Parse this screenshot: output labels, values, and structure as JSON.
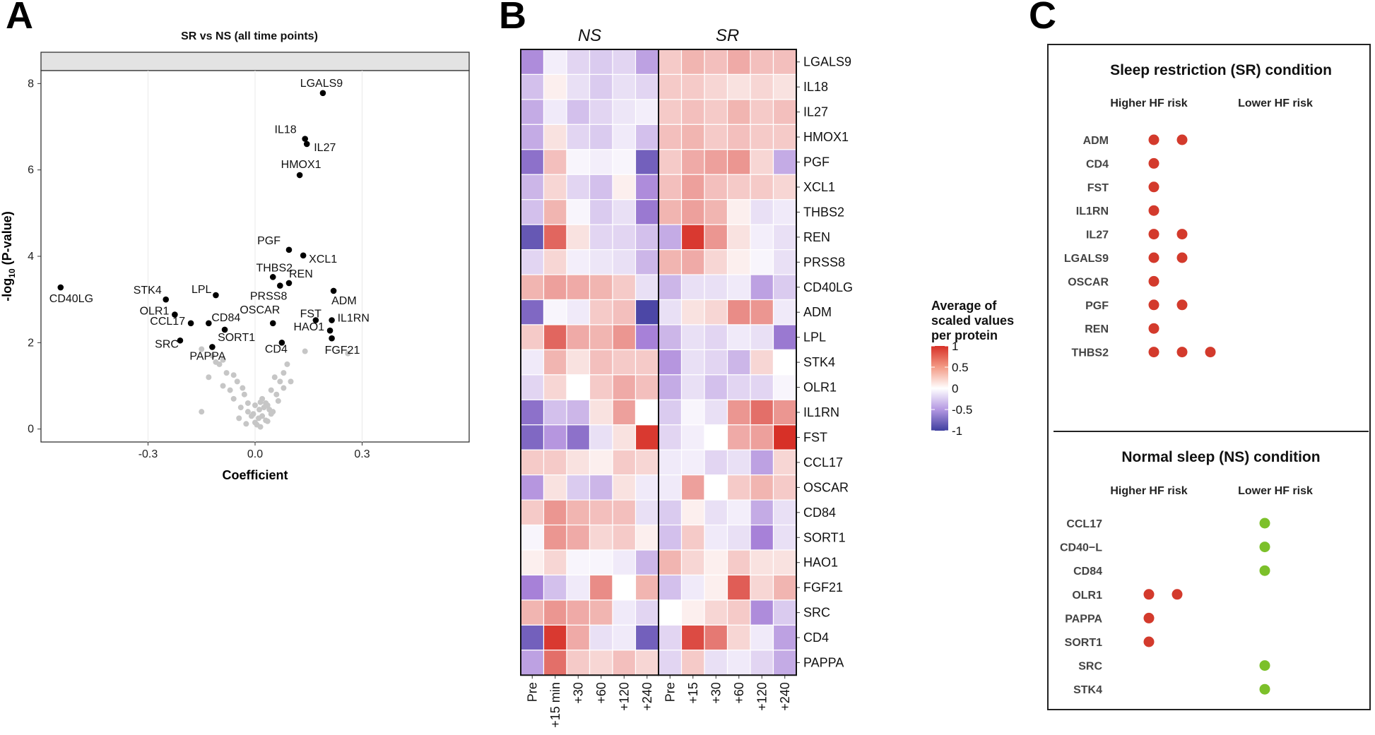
{
  "chart_data": [
    {
      "panel": "A",
      "type": "scatter",
      "title": "SR vs NS (all time points)",
      "xlabel": "Coefficient",
      "ylabel": "-log10 (P-value)",
      "xlim": [
        -0.6,
        0.6
      ],
      "ylim": [
        -0.3,
        8.3
      ],
      "xticks": [
        -0.3,
        0.0,
        0.3
      ],
      "xtick_labels": [
        "-0.3",
        "0.0",
        "0.3"
      ],
      "yticks": [
        0,
        2,
        4,
        6,
        8
      ],
      "ytick_labels": [
        "0",
        "2",
        "4",
        "6",
        "8"
      ],
      "colors": {
        "significant": "#000000",
        "nonsignificant": "#c6c6c6",
        "strip": "#e3e3e3"
      },
      "significant_points": [
        {
          "label": "LGALS9",
          "x": 0.19,
          "y": 7.78
        },
        {
          "label": "IL18",
          "x": 0.14,
          "y": 6.72
        },
        {
          "label": "IL27",
          "x": 0.145,
          "y": 6.6
        },
        {
          "label": "HMOX1",
          "x": 0.125,
          "y": 5.88
        },
        {
          "label": "PGF",
          "x": 0.095,
          "y": 4.15
        },
        {
          "label": "XCL1",
          "x": 0.135,
          "y": 4.02
        },
        {
          "label": "THBS2",
          "x": 0.05,
          "y": 3.52
        },
        {
          "label": "REN",
          "x": 0.095,
          "y": 3.38
        },
        {
          "label": "PRSS8",
          "x": 0.07,
          "y": 3.32
        },
        {
          "label": "CD40LG",
          "x": -0.545,
          "y": 3.28
        },
        {
          "label": "ADM",
          "x": 0.22,
          "y": 3.2
        },
        {
          "label": "STK4",
          "x": -0.25,
          "y": 3.0
        },
        {
          "label": "LPL",
          "x": -0.11,
          "y": 3.1
        },
        {
          "label": "OLR1",
          "x": -0.225,
          "y": 2.65
        },
        {
          "label": "CD84",
          "x": -0.13,
          "y": 2.45
        },
        {
          "label": "OSCAR",
          "x": 0.05,
          "y": 2.45
        },
        {
          "label": "FST",
          "x": 0.17,
          "y": 2.52
        },
        {
          "label": "IL1RN",
          "x": 0.215,
          "y": 2.52
        },
        {
          "label": "CCL17",
          "x": -0.18,
          "y": 2.45
        },
        {
          "label": "SORT1",
          "x": -0.085,
          "y": 2.3
        },
        {
          "label": "HAO1",
          "x": 0.21,
          "y": 2.28
        },
        {
          "label": "SRC",
          "x": -0.21,
          "y": 2.05
        },
        {
          "label": "FGF21",
          "x": 0.215,
          "y": 2.1
        },
        {
          "label": "PAPPA",
          "x": -0.12,
          "y": 1.9
        },
        {
          "label": "CD4",
          "x": 0.075,
          "y": 2.0
        }
      ],
      "nonsignificant_points": [
        [
          -0.15,
          0.4
        ],
        [
          -0.13,
          1.2
        ],
        [
          -0.11,
          1.55
        ],
        [
          -0.1,
          1.5
        ],
        [
          -0.09,
          1.0
        ],
        [
          -0.08,
          1.3
        ],
        [
          -0.07,
          0.9
        ],
        [
          -0.06,
          0.7
        ],
        [
          -0.05,
          1.1
        ],
        [
          -0.04,
          0.5
        ],
        [
          -0.03,
          0.8
        ],
        [
          -0.02,
          0.4
        ],
        [
          -0.01,
          0.3
        ],
        [
          0.0,
          0.15
        ],
        [
          0.005,
          0.1
        ],
        [
          0.01,
          0.25
        ],
        [
          0.015,
          0.05
        ],
        [
          0.02,
          0.3
        ],
        [
          0.025,
          0.5
        ],
        [
          0.03,
          0.6
        ],
        [
          0.035,
          0.55
        ],
        [
          0.04,
          0.45
        ],
        [
          0.045,
          0.35
        ],
        [
          0.05,
          0.4
        ],
        [
          0.06,
          0.8
        ],
        [
          0.07,
          1.1
        ],
        [
          0.08,
          1.3
        ],
        [
          0.09,
          1.5
        ],
        [
          0.1,
          1.1
        ],
        [
          0.055,
          1.2
        ],
        [
          -0.02,
          0.6
        ],
        [
          -0.035,
          0.95
        ],
        [
          0.0,
          0.55
        ],
        [
          0.02,
          0.7
        ],
        [
          0.065,
          0.65
        ],
        [
          -0.06,
          1.25
        ],
        [
          -0.12,
          1.7
        ],
        [
          0.14,
          1.8
        ],
        [
          0.26,
          1.75
        ],
        [
          -0.15,
          1.85
        ],
        [
          0.03,
          0.2
        ],
        [
          -0.005,
          0.35
        ],
        [
          0.012,
          0.45
        ],
        [
          -0.09,
          1.6
        ],
        [
          0.045,
          0.9
        ],
        [
          0.08,
          0.95
        ],
        [
          -0.045,
          0.25
        ],
        [
          0.015,
          0.62
        ],
        [
          0.035,
          0.18
        ],
        [
          -0.025,
          0.12
        ]
      ]
    },
    {
      "panel": "B",
      "type": "heatmap",
      "groups": [
        "NS",
        "SR"
      ],
      "columns": [
        "Pre",
        "+15 min",
        "+30",
        "+60",
        "+120",
        "+240",
        "Pre",
        "+15",
        "+30",
        "+60",
        "+120",
        "+240"
      ],
      "rows": [
        "LGALS9",
        "IL18",
        "IL27",
        "HMOX1",
        "PGF",
        "XCL1",
        "THBS2",
        "REN",
        "PRSS8",
        "CD40LG",
        "ADM",
        "LPL",
        "STK4",
        "OLR1",
        "IL1RN",
        "FST",
        "CCL17",
        "OSCAR",
        "CD84",
        "SORT1",
        "HAO1",
        "FGF21",
        "SRC",
        "CD4",
        "PAPPA"
      ],
      "values": [
        [
          -0.55,
          -0.08,
          -0.2,
          -0.25,
          -0.2,
          -0.45,
          0.2,
          0.3,
          0.25,
          0.35,
          0.25,
          0.25
        ],
        [
          -0.3,
          0.05,
          -0.15,
          -0.25,
          -0.15,
          -0.2,
          0.2,
          0.2,
          0.15,
          0.1,
          0.15,
          0.1
        ],
        [
          -0.4,
          -0.1,
          -0.3,
          -0.2,
          -0.12,
          -0.08,
          0.2,
          0.25,
          0.2,
          0.3,
          0.2,
          0.25
        ],
        [
          -0.4,
          0.1,
          -0.2,
          -0.25,
          -0.1,
          -0.3,
          0.25,
          0.3,
          0.2,
          0.25,
          0.2,
          0.2
        ],
        [
          -0.7,
          0.25,
          -0.05,
          -0.08,
          -0.05,
          -0.8,
          0.2,
          0.35,
          0.4,
          0.45,
          0.15,
          -0.4
        ],
        [
          -0.35,
          0.15,
          -0.2,
          -0.3,
          0.05,
          -0.55,
          0.25,
          0.4,
          0.25,
          0.2,
          0.2,
          0.15
        ],
        [
          -0.3,
          0.3,
          -0.05,
          -0.25,
          -0.15,
          -0.65,
          0.3,
          0.4,
          0.3,
          0.05,
          -0.15,
          -0.1
        ],
        [
          -0.85,
          0.7,
          0.1,
          -0.2,
          -0.2,
          -0.3,
          -0.4,
          0.95,
          0.45,
          0.1,
          -0.08,
          -0.15
        ],
        [
          -0.2,
          0.15,
          -0.08,
          -0.12,
          -0.15,
          -0.35,
          0.3,
          0.35,
          0.15,
          0.05,
          -0.05,
          -0.15
        ],
        [
          0.3,
          0.4,
          0.35,
          0.3,
          0.2,
          -0.15,
          -0.35,
          -0.15,
          -0.15,
          -0.1,
          -0.45,
          -0.25
        ],
        [
          -0.75,
          -0.05,
          -0.1,
          0.2,
          0.25,
          -0.95,
          -0.15,
          0.1,
          0.15,
          0.5,
          0.45,
          -0.1
        ],
        [
          0.2,
          0.7,
          0.35,
          0.3,
          0.45,
          -0.6,
          -0.35,
          -0.15,
          -0.2,
          -0.1,
          -0.15,
          -0.65
        ],
        [
          -0.1,
          0.3,
          0.1,
          0.25,
          0.2,
          0.2,
          -0.5,
          -0.15,
          -0.2,
          -0.35,
          0.15,
          0.0
        ],
        [
          -0.2,
          0.15,
          0.0,
          0.2,
          0.35,
          0.25,
          -0.4,
          -0.15,
          -0.3,
          -0.2,
          -0.2,
          -0.05
        ],
        [
          -0.7,
          -0.3,
          -0.35,
          0.1,
          0.4,
          0.0,
          -0.25,
          -0.05,
          -0.15,
          0.45,
          0.65,
          0.45
        ],
        [
          -0.75,
          -0.5,
          -0.7,
          -0.15,
          0.1,
          0.95,
          -0.2,
          -0.08,
          0.0,
          0.35,
          0.4,
          1.0
        ],
        [
          0.2,
          0.2,
          0.1,
          0.05,
          0.2,
          0.15,
          -0.1,
          -0.08,
          -0.2,
          -0.15,
          -0.45,
          0.15
        ],
        [
          -0.5,
          0.1,
          -0.25,
          -0.35,
          0.1,
          -0.1,
          -0.1,
          0.4,
          0.0,
          0.2,
          0.3,
          0.2
        ],
        [
          0.2,
          0.45,
          0.3,
          0.25,
          0.25,
          -0.15,
          -0.25,
          0.05,
          -0.15,
          -0.08,
          -0.4,
          -0.15
        ],
        [
          -0.05,
          0.45,
          0.35,
          0.15,
          0.2,
          0.05,
          -0.3,
          0.2,
          -0.1,
          -0.15,
          -0.6,
          -0.15
        ],
        [
          0.05,
          0.15,
          -0.05,
          -0.05,
          -0.1,
          -0.35,
          0.3,
          0.15,
          0.05,
          0.2,
          0.1,
          0.1
        ],
        [
          -0.6,
          -0.3,
          -0.1,
          0.5,
          0.0,
          0.3,
          -0.3,
          -0.1,
          0.05,
          0.75,
          0.15,
          0.3
        ],
        [
          0.3,
          0.45,
          0.35,
          0.3,
          -0.1,
          -0.2,
          0.0,
          0.05,
          0.15,
          0.2,
          -0.55,
          -0.25
        ],
        [
          -0.8,
          0.95,
          0.35,
          -0.15,
          -0.1,
          -0.8,
          -0.2,
          0.85,
          0.6,
          0.15,
          -0.1,
          -0.45
        ],
        [
          -0.45,
          0.65,
          0.2,
          0.15,
          0.25,
          0.15,
          -0.2,
          0.2,
          -0.15,
          -0.1,
          -0.2,
          -0.4
        ]
      ],
      "legend": {
        "title_lines": [
          "Average of",
          "scaled values",
          "per protein"
        ],
        "ticks": [
          "1",
          "0.5",
          "0",
          "-0.5",
          "-1"
        ],
        "tick_values": [
          1,
          0.5,
          0,
          -0.5,
          -1
        ]
      },
      "colors": {
        "high": "#d73027",
        "mid": "#ffffff",
        "low": "#3f3f9f",
        "lowmid": "#a781d8"
      }
    },
    {
      "panel": "C",
      "type": "table",
      "sections": [
        {
          "title": "Sleep restriction (SR) condition",
          "col_higher": "Higher HF risk",
          "col_lower": "Lower HF risk",
          "rows": [
            {
              "label": "ADM",
              "higher": 2,
              "lower": 0
            },
            {
              "label": "CD4",
              "higher": 1,
              "lower": 0
            },
            {
              "label": "FST",
              "higher": 1,
              "lower": 0
            },
            {
              "label": "IL1RN",
              "higher": 1,
              "lower": 0
            },
            {
              "label": "IL27",
              "higher": 2,
              "lower": 0
            },
            {
              "label": "LGALS9",
              "higher": 2,
              "lower": 0
            },
            {
              "label": "OSCAR",
              "higher": 1,
              "lower": 0
            },
            {
              "label": "PGF",
              "higher": 2,
              "lower": 0
            },
            {
              "label": "REN",
              "higher": 1,
              "lower": 0
            },
            {
              "label": "THBS2",
              "higher": 3,
              "lower": 0
            }
          ]
        },
        {
          "title": "Normal sleep (NS) condition",
          "col_higher": "Higher HF risk",
          "col_lower": "Lower HF risk",
          "rows": [
            {
              "label": "CCL17",
              "higher": 0,
              "lower": 1
            },
            {
              "label": "CD40−L",
              "higher": 0,
              "lower": 1
            },
            {
              "label": "CD84",
              "higher": 0,
              "lower": 1
            },
            {
              "label": "OLR1",
              "higher": 2,
              "lower": 0
            },
            {
              "label": "PAPPA",
              "higher": 1,
              "lower": 0
            },
            {
              "label": "SORT1",
              "higher": 1,
              "lower": 0
            },
            {
              "label": "SRC",
              "higher": 0,
              "lower": 1
            },
            {
              "label": "STK4",
              "higher": 0,
              "lower": 1
            }
          ]
        }
      ],
      "colors": {
        "higher": "#d33a2c",
        "lower": "#7cc02a"
      }
    }
  ],
  "panel_letters": [
    "A",
    "B",
    "C"
  ]
}
